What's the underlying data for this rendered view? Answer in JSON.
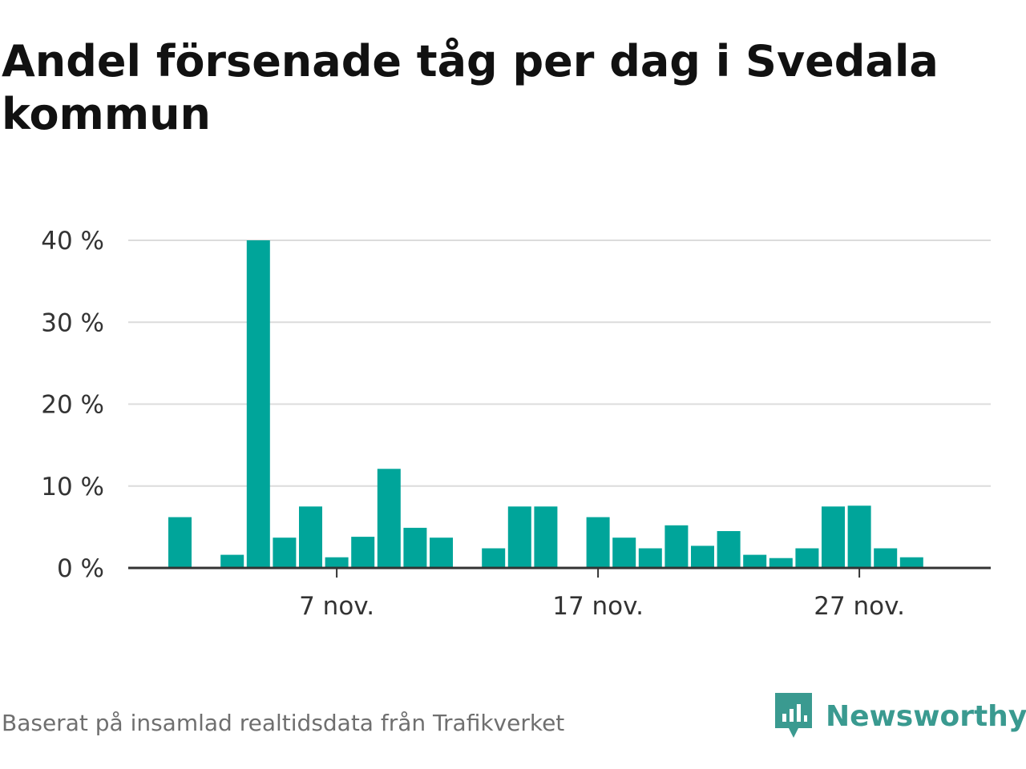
{
  "header": {
    "title": "Andel försenade tåg per dag i Svedala kommun"
  },
  "chart_data": {
    "type": "bar",
    "title": "Andel försenade tåg per dag i Svedala kommun",
    "xlabel": "",
    "ylabel": "",
    "ylim": [
      0,
      40
    ],
    "yticks": [
      {
        "value": 0,
        "label": "0 %"
      },
      {
        "value": 10,
        "label": "10 %"
      },
      {
        "value": 20,
        "label": "20 %"
      },
      {
        "value": 30,
        "label": "30 %"
      },
      {
        "value": 40,
        "label": "40 %"
      }
    ],
    "xticks": [
      {
        "day": 7,
        "label": "7 nov."
      },
      {
        "day": 17,
        "label": "17 nov."
      },
      {
        "day": 27,
        "label": "27 nov."
      }
    ],
    "grid": true,
    "bar_color": "#00a59a",
    "days": [
      1,
      2,
      3,
      4,
      5,
      6,
      7,
      8,
      9,
      10,
      11,
      12,
      13,
      14,
      15,
      16,
      17,
      18,
      19,
      20,
      21,
      22,
      23,
      24,
      25,
      26,
      27,
      28,
      29,
      30
    ],
    "values": [
      6.2,
      0,
      1.6,
      40.0,
      3.7,
      7.5,
      1.3,
      3.8,
      12.1,
      4.9,
      3.7,
      0,
      2.4,
      7.5,
      7.5,
      0,
      6.2,
      3.7,
      2.4,
      5.2,
      2.7,
      4.5,
      1.6,
      1.2,
      2.4,
      7.5,
      7.6,
      2.4,
      1.3,
      0
    ],
    "value_unit": "%"
  },
  "footer": {
    "source": "Baserat på insamlad realtidsdata från Trafikverket",
    "brand": "Newsworthy",
    "brand_icon": "newsworthy-logo-icon",
    "brand_color": "#3a9a90"
  }
}
